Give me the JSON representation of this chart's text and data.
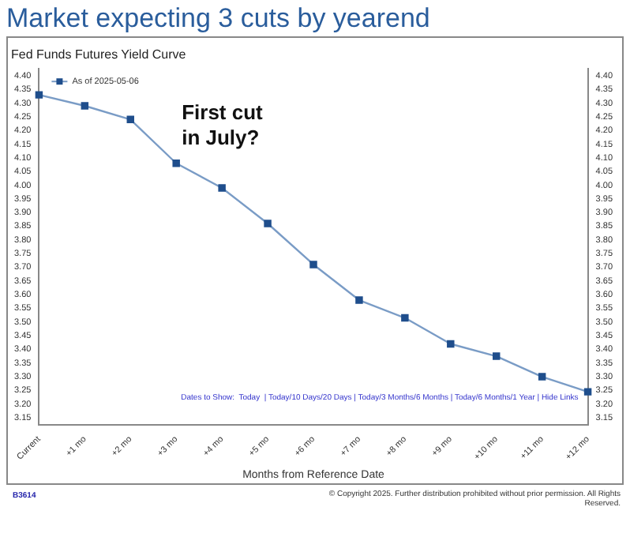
{
  "chart_data": {
    "type": "line",
    "title": "Market expecting 3 cuts by yearend",
    "subtitle": "Fed Funds Futures Yield Curve",
    "xlabel": "Months from Reference Date",
    "categories": [
      "Current",
      "+1 mo",
      "+2 mo",
      "+3 mo",
      "+4 mo",
      "+5 mo",
      "+6 mo",
      "+7 mo",
      "+8 mo",
      "+9 mo",
      "+10 mo",
      "+11 mo",
      "+12 mo"
    ],
    "series": [
      {
        "name": "As of 2025-05-06",
        "color": "#1f4e8c",
        "values": [
          4.33,
          4.29,
          4.24,
          4.08,
          3.99,
          3.86,
          3.71,
          3.58,
          3.515,
          3.42,
          3.375,
          3.3,
          3.245
        ]
      }
    ],
    "ylim": [
      3.125,
      4.425
    ],
    "yticks": [
      {
        "value": 3.15,
        "label": "3.15"
      },
      {
        "value": 3.2,
        "label": "3.20"
      },
      {
        "value": 3.25,
        "label": "3.25"
      },
      {
        "value": 3.3,
        "label": "3.30"
      },
      {
        "value": 3.35,
        "label": "3.35"
      },
      {
        "value": 3.4,
        "label": "3.40"
      },
      {
        "value": 3.45,
        "label": "3.45"
      },
      {
        "value": 3.5,
        "label": "3.50"
      },
      {
        "value": 3.55,
        "label": "3.55"
      },
      {
        "value": 3.6,
        "label": "3.60"
      },
      {
        "value": 3.65,
        "label": "3.65"
      },
      {
        "value": 3.7,
        "label": "3.70"
      },
      {
        "value": 3.75,
        "label": "3.75"
      },
      {
        "value": 3.8,
        "label": "3.80"
      },
      {
        "value": 3.85,
        "label": "3.85"
      },
      {
        "value": 3.9,
        "label": "3.90"
      },
      {
        "value": 3.95,
        "label": "3.95"
      },
      {
        "value": 4.0,
        "label": "4.00"
      },
      {
        "value": 4.05,
        "label": "4.05"
      },
      {
        "value": 4.1,
        "label": "4.10"
      },
      {
        "value": 4.15,
        "label": "4.15"
      },
      {
        "value": 4.2,
        "label": "4.20"
      },
      {
        "value": 4.25,
        "label": "4.25"
      },
      {
        "value": 4.3,
        "label": "4.30"
      },
      {
        "value": 4.35,
        "label": "4.35"
      },
      {
        "value": 4.4,
        "label": "4.40"
      }
    ],
    "y2lim": [
      3.125,
      4.425
    ],
    "y2ticks": [
      {
        "value": 3.15,
        "label": "3.15"
      },
      {
        "value": 3.2,
        "label": "3.20"
      },
      {
        "value": 3.25,
        "label": "3.25"
      },
      {
        "value": 3.3,
        "label": "3.30"
      },
      {
        "value": 3.35,
        "label": "3.35"
      },
      {
        "value": 3.4,
        "label": "3.40"
      },
      {
        "value": 3.45,
        "label": "3.45"
      },
      {
        "value": 3.5,
        "label": "3.50"
      },
      {
        "value": 3.55,
        "label": "3.55"
      },
      {
        "value": 3.6,
        "label": "3.60"
      },
      {
        "value": 3.65,
        "label": "3.65"
      },
      {
        "value": 3.7,
        "label": "3.70"
      },
      {
        "value": 3.75,
        "label": "3.75"
      },
      {
        "value": 3.8,
        "label": "3.80"
      },
      {
        "value": 3.85,
        "label": "3.85"
      },
      {
        "value": 3.9,
        "label": "3.90"
      },
      {
        "value": 3.95,
        "label": "3.95"
      },
      {
        "value": 4.0,
        "label": "4.00"
      },
      {
        "value": 4.05,
        "label": "4.05"
      },
      {
        "value": 4.1,
        "label": "4.10"
      },
      {
        "value": 4.15,
        "label": "4.15"
      },
      {
        "value": 4.2,
        "label": "4.20"
      },
      {
        "value": 4.25,
        "label": "4.25"
      },
      {
        "value": 4.3,
        "label": "4.30"
      },
      {
        "value": 4.35,
        "label": "4.35"
      },
      {
        "value": 4.4,
        "label": "4.40"
      }
    ],
    "marker": "square",
    "line_style": "solid",
    "grid": false,
    "legend": "top left",
    "annotations": [
      "First cut in July?",
      "Dates to Show:  Today  | Today/10 Days/20 Days | Today/3 Months/6 Months | Today/6 Months/1 Year | Hide Links",
      "B3614",
      "© Copyright 2025. Further distribution prohibited without prior permission. All Rights Reserved."
    ]
  }
}
